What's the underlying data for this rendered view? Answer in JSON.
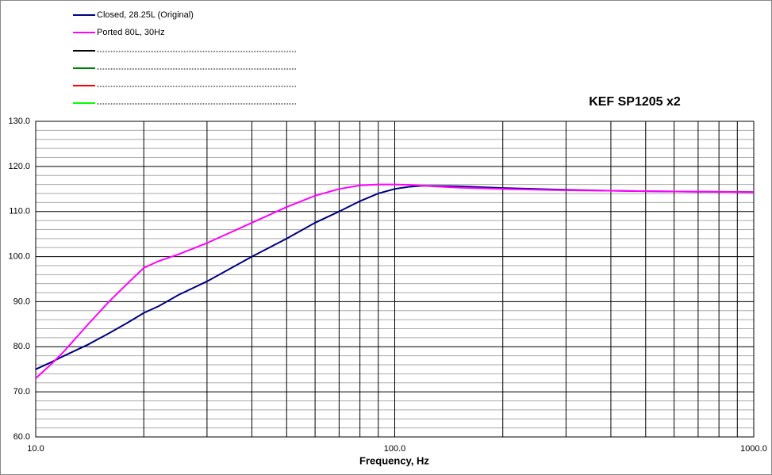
{
  "chart_data": {
    "type": "line",
    "title": "KEF SP1205 x2",
    "x_label": "Frequency, Hz",
    "x": [
      10,
      11,
      12,
      14,
      16,
      18,
      20,
      22,
      25,
      30,
      40,
      50,
      60,
      70,
      80,
      90,
      100,
      110,
      120,
      150,
      200,
      300,
      400,
      500,
      700,
      1000
    ],
    "series": [
      {
        "name": "Closed, 28.25L (Original)",
        "color": "#000080",
        "values": [
          75,
          76.5,
          78,
          80.5,
          83,
          85.3,
          87.5,
          89,
          91.5,
          94.5,
          100,
          104,
          107.5,
          110,
          112.3,
          114,
          115,
          115.5,
          115.7,
          115.6,
          115.2,
          114.8,
          114.6,
          114.5,
          114.4,
          114.3
        ]
      },
      {
        "name": "Ported 80L, 30Hz",
        "color": "#ff00ff",
        "values": [
          73,
          76,
          79,
          85,
          90,
          94,
          97.5,
          99,
          100.5,
          103,
          107.5,
          111,
          113.5,
          115,
          115.8,
          116,
          116,
          115.9,
          115.7,
          115.3,
          115,
          114.7,
          114.6,
          114.5,
          114.4,
          114.3
        ]
      }
    ],
    "xscale": "log",
    "xlim": [
      10,
      1000
    ],
    "xticks": [
      {
        "value": 10,
        "label": "10.0"
      },
      {
        "value": 100,
        "label": "100.0"
      },
      {
        "value": 1000,
        "label": "1000.0"
      }
    ],
    "xminorticks": [
      20,
      30,
      40,
      50,
      60,
      70,
      80,
      90,
      200,
      300,
      400,
      500,
      600,
      700,
      800,
      900
    ],
    "ylim": [
      60,
      130
    ],
    "yticks": [
      {
        "value": 60,
        "label": "60.0"
      },
      {
        "value": 70,
        "label": "70.0"
      },
      {
        "value": 80,
        "label": "80.0"
      },
      {
        "value": 90,
        "label": "90.0"
      },
      {
        "value": 100,
        "label": "100.0"
      },
      {
        "value": 110,
        "label": "110.0"
      },
      {
        "value": 120,
        "label": "120.0"
      },
      {
        "value": 130,
        "label": "130.0"
      }
    ],
    "yminorticks": [
      62,
      64,
      66,
      68,
      72,
      74,
      76,
      78,
      82,
      84,
      86,
      88,
      92,
      94,
      96,
      98,
      102,
      104,
      106,
      108,
      112,
      114,
      116,
      118,
      122,
      124,
      126,
      128
    ],
    "grid": true,
    "legend": "top-left"
  }
}
